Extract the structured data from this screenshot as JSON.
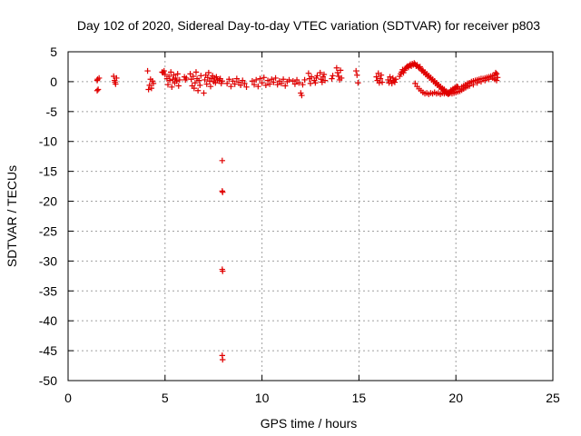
{
  "chart_data": {
    "type": "scatter",
    "title": "Day 102 of 2020, Sidereal Day-to-day VTEC variation (SDTVAR) for receiver p803",
    "xlabel": "GPS time / hours",
    "ylabel": "SDTVAR / TECUs",
    "xlim": [
      0,
      25
    ],
    "ylim": [
      -50,
      5
    ],
    "xticks": [
      "0",
      "5",
      "10",
      "15",
      "20",
      "25"
    ],
    "yticks": [
      "5",
      "0",
      "-5",
      "-10",
      "-15",
      "-20",
      "-25",
      "-30",
      "-35",
      "-40",
      "-45",
      "-50"
    ],
    "grid": true,
    "marker": "+",
    "color": "#e00000",
    "series": [
      {
        "name": "SDTVAR",
        "points": [
          [
            1.5,
            -1.5
          ],
          [
            1.55,
            -1.3
          ],
          [
            1.5,
            0.2
          ],
          [
            1.6,
            0.6
          ],
          [
            1.52,
            0.4
          ],
          [
            2.35,
            0.9
          ],
          [
            2.4,
            0.2
          ],
          [
            2.45,
            -0.4
          ],
          [
            2.5,
            0.6
          ],
          [
            2.42,
            -0.1
          ],
          [
            4.1,
            1.8
          ],
          [
            4.15,
            -1.3
          ],
          [
            4.2,
            -0.6
          ],
          [
            4.25,
            0.4
          ],
          [
            4.3,
            -1.1
          ],
          [
            4.35,
            0.1
          ],
          [
            4.4,
            -0.3
          ],
          [
            4.85,
            1.6
          ],
          [
            4.9,
            1.5
          ],
          [
            4.95,
            1.8
          ],
          [
            5.0,
            1.2
          ],
          [
            5.1,
            0.5
          ],
          [
            5.15,
            -0.5
          ],
          [
            5.2,
            0.9
          ],
          [
            5.25,
            0.2
          ],
          [
            5.3,
            1.6
          ],
          [
            5.35,
            -0.9
          ],
          [
            5.4,
            0.4
          ],
          [
            5.45,
            1.1
          ],
          [
            5.5,
            -0.2
          ],
          [
            5.55,
            0.6
          ],
          [
            5.6,
            0.1
          ],
          [
            5.65,
            1.3
          ],
          [
            5.7,
            -0.7
          ],
          [
            5.75,
            0.3
          ],
          [
            6.0,
            0.8
          ],
          [
            6.05,
            0.3
          ],
          [
            6.1,
            0.6
          ],
          [
            6.3,
            1.3
          ],
          [
            6.35,
            0.4
          ],
          [
            6.4,
            -0.7
          ],
          [
            6.45,
            0.9
          ],
          [
            6.5,
            -1.1
          ],
          [
            6.55,
            -0.2
          ],
          [
            6.6,
            1.6
          ],
          [
            6.65,
            0.5
          ],
          [
            6.7,
            -1.5
          ],
          [
            6.75,
            0.2
          ],
          [
            6.8,
            -0.6
          ],
          [
            6.85,
            1.0
          ],
          [
            7.0,
            -1.9
          ],
          [
            7.05,
            0.3
          ],
          [
            7.1,
            1.1
          ],
          [
            7.15,
            -0.4
          ],
          [
            7.2,
            0.7
          ],
          [
            7.25,
            1.5
          ],
          [
            7.3,
            0.1
          ],
          [
            7.35,
            -0.8
          ],
          [
            7.4,
            0.5
          ],
          [
            7.45,
            1.0
          ],
          [
            7.5,
            0.0
          ],
          [
            7.55,
            0.6
          ],
          [
            7.6,
            -0.2
          ],
          [
            7.65,
            0.8
          ],
          [
            7.7,
            0.3
          ],
          [
            7.8,
            0.2
          ],
          [
            7.85,
            0.5
          ],
          [
            7.9,
            -0.3
          ],
          [
            7.95,
            0.1
          ],
          [
            7.95,
            -13.2
          ],
          [
            7.95,
            -18.3
          ],
          [
            7.97,
            -18.5
          ],
          [
            7.95,
            -31.4
          ],
          [
            7.97,
            -31.7
          ],
          [
            7.95,
            -45.8
          ],
          [
            7.97,
            -46.5
          ],
          [
            8.2,
            -0.3
          ],
          [
            8.3,
            0.4
          ],
          [
            8.4,
            -0.8
          ],
          [
            8.5,
            0.1
          ],
          [
            8.6,
            -0.4
          ],
          [
            8.7,
            0.5
          ],
          [
            8.8,
            -0.1
          ],
          [
            8.9,
            -0.6
          ],
          [
            9.0,
            0.2
          ],
          [
            9.1,
            -0.3
          ],
          [
            9.2,
            -0.9
          ],
          [
            9.5,
            0.1
          ],
          [
            9.6,
            -0.5
          ],
          [
            9.7,
            0.3
          ],
          [
            9.8,
            -0.8
          ],
          [
            9.9,
            0.5
          ],
          [
            10.0,
            -0.2
          ],
          [
            10.1,
            0.7
          ],
          [
            10.2,
            -0.6
          ],
          [
            10.3,
            0.2
          ],
          [
            10.4,
            -0.4
          ],
          [
            10.5,
            0.4
          ],
          [
            10.6,
            -0.1
          ],
          [
            10.7,
            0.6
          ],
          [
            10.8,
            -0.5
          ],
          [
            10.9,
            0.1
          ],
          [
            11.0,
            -0.3
          ],
          [
            11.1,
            0.4
          ],
          [
            11.2,
            -0.7
          ],
          [
            11.3,
            0.0
          ],
          [
            11.4,
            0.3
          ],
          [
            11.6,
            0.1
          ],
          [
            11.7,
            -0.4
          ],
          [
            11.8,
            0.3
          ],
          [
            11.9,
            -0.2
          ],
          [
            12.0,
            -1.9
          ],
          [
            12.05,
            -2.3
          ],
          [
            12.1,
            -0.5
          ],
          [
            12.2,
            0.3
          ],
          [
            12.4,
            1.4
          ],
          [
            12.45,
            0.5
          ],
          [
            12.5,
            -0.3
          ],
          [
            12.55,
            0.8
          ],
          [
            12.7,
            0.2
          ],
          [
            12.75,
            -0.2
          ],
          [
            12.8,
            0.6
          ],
          [
            12.85,
            1.0
          ],
          [
            13.0,
            1.5
          ],
          [
            13.05,
            0.4
          ],
          [
            13.1,
            -0.1
          ],
          [
            13.15,
            0.8
          ],
          [
            13.2,
            1.2
          ],
          [
            13.25,
            0.2
          ],
          [
            13.6,
            0.5
          ],
          [
            13.65,
            1.0
          ],
          [
            13.85,
            2.3
          ],
          [
            13.9,
            1.5
          ],
          [
            13.95,
            0.9
          ],
          [
            14.0,
            0.3
          ],
          [
            14.05,
            1.9
          ],
          [
            14.1,
            0.6
          ],
          [
            14.85,
            1.8
          ],
          [
            14.9,
            1.1
          ],
          [
            14.95,
            -0.2
          ],
          [
            15.9,
            0.8
          ],
          [
            15.95,
            0.2
          ],
          [
            16.0,
            1.4
          ],
          [
            16.05,
            -0.2
          ],
          [
            16.1,
            0.5
          ],
          [
            16.15,
            1.1
          ],
          [
            16.2,
            -0.1
          ],
          [
            16.5,
            0.3
          ],
          [
            16.55,
            -0.2
          ],
          [
            16.6,
            0.8
          ],
          [
            16.65,
            0.1
          ],
          [
            16.7,
            -0.3
          ],
          [
            16.75,
            0.6
          ],
          [
            16.8,
            0.2
          ],
          [
            16.85,
            -0.1
          ],
          [
            16.9,
            0.4
          ],
          [
            17.1,
            0.9
          ],
          [
            17.15,
            1.3
          ],
          [
            17.2,
            1.6
          ],
          [
            17.25,
            2.0
          ],
          [
            17.3,
            1.5
          ],
          [
            17.35,
            1.9
          ],
          [
            17.4,
            2.2
          ],
          [
            17.45,
            2.4
          ],
          [
            17.5,
            2.6
          ],
          [
            17.55,
            2.4
          ],
          [
            17.6,
            2.7
          ],
          [
            17.65,
            2.9
          ],
          [
            17.7,
            2.6
          ],
          [
            17.75,
            3.0
          ],
          [
            17.8,
            2.8
          ],
          [
            17.85,
            3.1
          ],
          [
            17.9,
            2.9
          ],
          [
            17.95,
            2.6
          ],
          [
            18.0,
            2.8
          ],
          [
            18.05,
            2.5
          ],
          [
            18.1,
            2.3
          ],
          [
            18.15,
            2.5
          ],
          [
            18.2,
            2.1
          ],
          [
            18.25,
            1.8
          ],
          [
            18.3,
            1.9
          ],
          [
            18.35,
            1.5
          ],
          [
            18.4,
            1.6
          ],
          [
            18.45,
            1.2
          ],
          [
            18.5,
            1.3
          ],
          [
            18.55,
            0.9
          ],
          [
            18.6,
            1.0
          ],
          [
            18.65,
            0.6
          ],
          [
            18.7,
            0.7
          ],
          [
            18.75,
            0.3
          ],
          [
            18.8,
            0.4
          ],
          [
            18.85,
            0.0
          ],
          [
            18.9,
            0.1
          ],
          [
            18.95,
            -0.3
          ],
          [
            19.0,
            -0.2
          ],
          [
            19.05,
            -0.6
          ],
          [
            19.1,
            -0.5
          ],
          [
            19.15,
            -0.9
          ],
          [
            19.2,
            -0.8
          ],
          [
            19.25,
            -1.2
          ],
          [
            19.3,
            -1.1
          ],
          [
            19.35,
            -1.4
          ],
          [
            19.4,
            -1.3
          ],
          [
            19.45,
            -1.7
          ],
          [
            19.5,
            -1.6
          ],
          [
            19.55,
            -1.9
          ],
          [
            19.6,
            -1.8
          ],
          [
            19.65,
            -2.0
          ],
          [
            19.7,
            -1.7
          ],
          [
            19.75,
            -1.4
          ],
          [
            19.8,
            -1.6
          ],
          [
            19.85,
            -1.2
          ],
          [
            19.9,
            -1.3
          ],
          [
            19.95,
            -1.0
          ],
          [
            20.0,
            -1.1
          ],
          [
            20.05,
            -0.8
          ],
          [
            20.1,
            -0.9
          ],
          [
            17.9,
            -0.3
          ],
          [
            18.0,
            -0.8
          ],
          [
            18.1,
            -1.2
          ],
          [
            18.2,
            -1.5
          ],
          [
            18.3,
            -1.8
          ],
          [
            18.4,
            -2.0
          ],
          [
            18.5,
            -1.9
          ],
          [
            18.6,
            -2.1
          ],
          [
            18.7,
            -1.9
          ],
          [
            18.8,
            -2.0
          ],
          [
            18.9,
            -1.8
          ],
          [
            19.0,
            -2.0
          ],
          [
            19.1,
            -1.9
          ],
          [
            19.2,
            -2.1
          ],
          [
            19.3,
            -1.9
          ],
          [
            19.4,
            -2.0
          ],
          [
            19.5,
            -1.9
          ],
          [
            19.6,
            -2.1
          ],
          [
            19.7,
            -1.9
          ],
          [
            19.8,
            -2.0
          ],
          [
            19.9,
            -1.9
          ],
          [
            20.0,
            -1.8
          ],
          [
            20.1,
            -1.7
          ],
          [
            20.2,
            -1.6
          ],
          [
            20.3,
            -1.4
          ],
          [
            20.4,
            -1.2
          ],
          [
            20.5,
            -1.0
          ],
          [
            20.6,
            -0.8
          ],
          [
            20.7,
            -0.7
          ],
          [
            20.2,
            -1.2
          ],
          [
            20.3,
            -0.9
          ],
          [
            20.4,
            -0.7
          ],
          [
            20.5,
            -0.5
          ],
          [
            20.6,
            -0.3
          ],
          [
            20.7,
            -0.2
          ],
          [
            20.8,
            0.0
          ],
          [
            20.9,
            0.1
          ],
          [
            21.0,
            0.2
          ],
          [
            21.1,
            0.3
          ],
          [
            21.2,
            0.4
          ],
          [
            21.3,
            0.5
          ],
          [
            21.4,
            0.5
          ],
          [
            21.5,
            0.6
          ],
          [
            21.6,
            0.7
          ],
          [
            21.7,
            0.8
          ],
          [
            21.8,
            0.9
          ],
          [
            21.9,
            1.0
          ],
          [
            22.0,
            1.1
          ],
          [
            20.9,
            -0.5
          ],
          [
            21.1,
            -0.2
          ],
          [
            21.3,
            0.0
          ],
          [
            21.5,
            0.2
          ],
          [
            21.7,
            0.4
          ],
          [
            21.9,
            0.6
          ],
          [
            22.0,
            0.4
          ],
          [
            22.1,
            1.3
          ],
          [
            22.15,
            0.7
          ],
          [
            22.05,
            1.5
          ],
          [
            22.1,
            0.2
          ]
        ]
      }
    ]
  }
}
